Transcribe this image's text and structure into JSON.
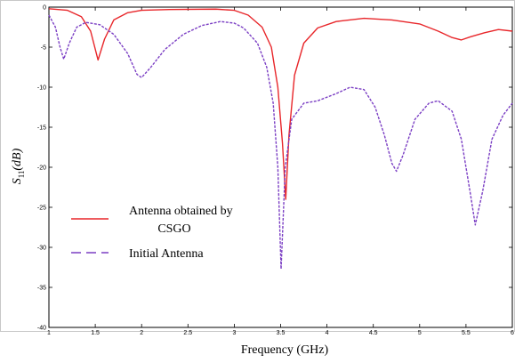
{
  "chart_data": {
    "type": "line",
    "xlabel": "Frequency (GHz)",
    "ylabel_main": "S",
    "ylabel_sub": "11",
    "ylabel_unit": "(dB)",
    "xlim": [
      1,
      6
    ],
    "ylim": [
      -40,
      0
    ],
    "xticks": [
      "1",
      "1.5",
      "2",
      "2.5",
      "3",
      "3.5",
      "4",
      "4.5",
      "5",
      "5.5",
      "6"
    ],
    "yticks": [
      "0",
      "-5",
      "-10",
      "-15",
      "-20",
      "-25",
      "-30",
      "-35",
      "-40"
    ],
    "grid": false,
    "legend_position": "lower-left",
    "series": [
      {
        "name": "Antenna obtained by CSGO",
        "legend_lines": [
          "Antenna obtained by",
          "CSGO"
        ],
        "color": "#e8262a",
        "dash": "solid",
        "points": [
          [
            1.0,
            -0.2
          ],
          [
            1.2,
            -0.4
          ],
          [
            1.35,
            -1.2
          ],
          [
            1.45,
            -3.0
          ],
          [
            1.53,
            -6.6
          ],
          [
            1.6,
            -4.0
          ],
          [
            1.7,
            -1.6
          ],
          [
            1.85,
            -0.7
          ],
          [
            2.0,
            -0.4
          ],
          [
            2.3,
            -0.3
          ],
          [
            2.8,
            -0.25
          ],
          [
            3.0,
            -0.4
          ],
          [
            3.15,
            -1.0
          ],
          [
            3.3,
            -2.5
          ],
          [
            3.4,
            -5.0
          ],
          [
            3.47,
            -10.0
          ],
          [
            3.52,
            -17.0
          ],
          [
            3.555,
            -24.0
          ],
          [
            3.59,
            -16.0
          ],
          [
            3.65,
            -8.5
          ],
          [
            3.75,
            -4.5
          ],
          [
            3.9,
            -2.6
          ],
          [
            4.1,
            -1.8
          ],
          [
            4.4,
            -1.4
          ],
          [
            4.7,
            -1.6
          ],
          [
            5.0,
            -2.1
          ],
          [
            5.2,
            -3.0
          ],
          [
            5.35,
            -3.8
          ],
          [
            5.45,
            -4.1
          ],
          [
            5.55,
            -3.7
          ],
          [
            5.7,
            -3.2
          ],
          [
            5.85,
            -2.8
          ],
          [
            6.0,
            -3.0
          ]
        ]
      },
      {
        "name": "Initial Antenna",
        "legend_lines": [
          "Initial Antenna"
        ],
        "color": "#7b3fc4",
        "dash": "dashed",
        "points": [
          [
            1.0,
            -1.0
          ],
          [
            1.07,
            -2.5
          ],
          [
            1.12,
            -5.0
          ],
          [
            1.16,
            -6.5
          ],
          [
            1.22,
            -4.5
          ],
          [
            1.3,
            -2.5
          ],
          [
            1.4,
            -1.9
          ],
          [
            1.55,
            -2.2
          ],
          [
            1.7,
            -3.4
          ],
          [
            1.85,
            -5.8
          ],
          [
            1.95,
            -8.4
          ],
          [
            2.0,
            -8.8
          ],
          [
            2.1,
            -7.5
          ],
          [
            2.25,
            -5.3
          ],
          [
            2.45,
            -3.4
          ],
          [
            2.65,
            -2.3
          ],
          [
            2.85,
            -1.8
          ],
          [
            3.0,
            -2.0
          ],
          [
            3.1,
            -2.6
          ],
          [
            3.25,
            -4.5
          ],
          [
            3.35,
            -7.5
          ],
          [
            3.42,
            -12.0
          ],
          [
            3.47,
            -20.0
          ],
          [
            3.505,
            -32.7
          ],
          [
            3.55,
            -20.0
          ],
          [
            3.62,
            -14.0
          ],
          [
            3.75,
            -12.0
          ],
          [
            3.9,
            -11.7
          ],
          [
            4.1,
            -10.8
          ],
          [
            4.25,
            -10.0
          ],
          [
            4.4,
            -10.3
          ],
          [
            4.52,
            -12.5
          ],
          [
            4.62,
            -16.0
          ],
          [
            4.7,
            -19.5
          ],
          [
            4.75,
            -20.5
          ],
          [
            4.82,
            -18.5
          ],
          [
            4.95,
            -14.0
          ],
          [
            5.1,
            -12.0
          ],
          [
            5.2,
            -11.7
          ],
          [
            5.35,
            -13.0
          ],
          [
            5.45,
            -16.5
          ],
          [
            5.55,
            -23.5
          ],
          [
            5.6,
            -27.2
          ],
          [
            5.68,
            -23.0
          ],
          [
            5.78,
            -16.5
          ],
          [
            5.9,
            -13.5
          ],
          [
            6.0,
            -12.0
          ]
        ]
      }
    ]
  }
}
